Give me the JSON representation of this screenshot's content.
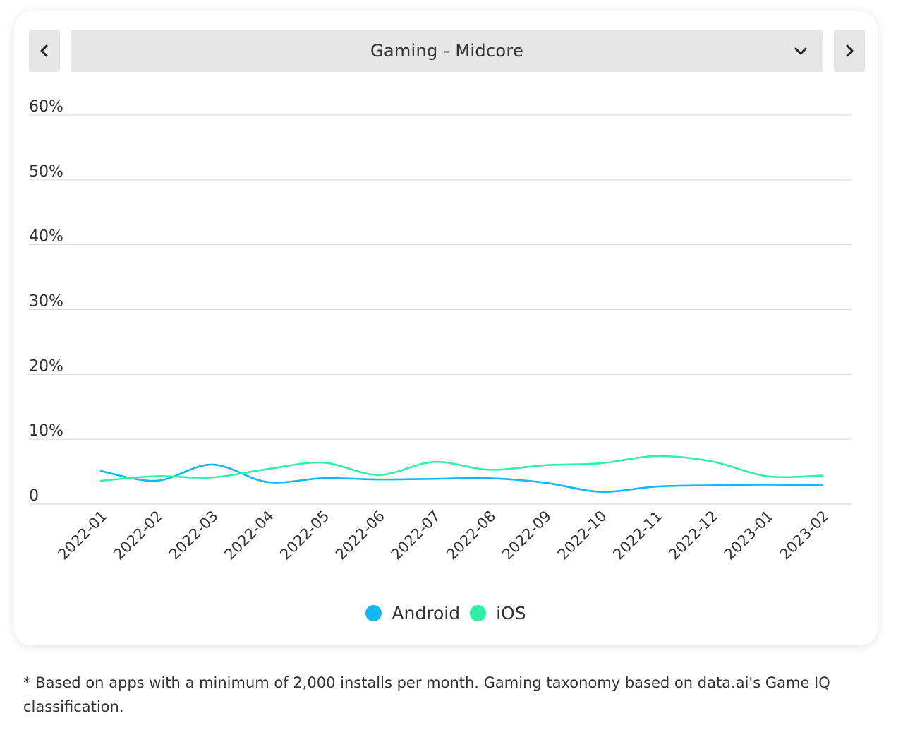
{
  "navigation": {
    "prev_icon": "chevron-left-icon",
    "next_icon": "chevron-right-icon",
    "dropdown_icon": "chevron-down-icon",
    "selected_category": "Gaming - Midcore"
  },
  "chart_data": {
    "type": "line",
    "title": "",
    "xlabel": "",
    "ylabel": "",
    "categories": [
      "2022-01",
      "2022-02",
      "2022-03",
      "2022-04",
      "2022-05",
      "2022-06",
      "2022-07",
      "2022-08",
      "2022-09",
      "2022-10",
      "2022-11",
      "2022-12",
      "2023-01",
      "2023-02"
    ],
    "ylim": [
      0,
      60
    ],
    "yticks": [
      0,
      10,
      20,
      30,
      40,
      50,
      60
    ],
    "ytick_labels": [
      "0",
      "10%",
      "20%",
      "30%",
      "40%",
      "50%",
      "60%"
    ],
    "grid": true,
    "legend_position": "bottom-center",
    "series": [
      {
        "name": "Android",
        "color": "#12b8f5",
        "values": [
          5.1,
          3.6,
          6.1,
          3.4,
          4.0,
          3.8,
          3.9,
          4.0,
          3.3,
          1.9,
          2.7,
          2.9,
          3.0,
          2.9
        ]
      },
      {
        "name": "iOS",
        "color": "#2ff0a8",
        "values": [
          3.6,
          4.3,
          4.1,
          5.4,
          6.4,
          4.5,
          6.5,
          5.3,
          6.0,
          6.3,
          7.4,
          6.6,
          4.3,
          4.4
        ]
      }
    ]
  },
  "footnote": "* Based on apps with a minimum of 2,000 installs per month. Gaming taxonomy based on data.ai's Game IQ classification."
}
